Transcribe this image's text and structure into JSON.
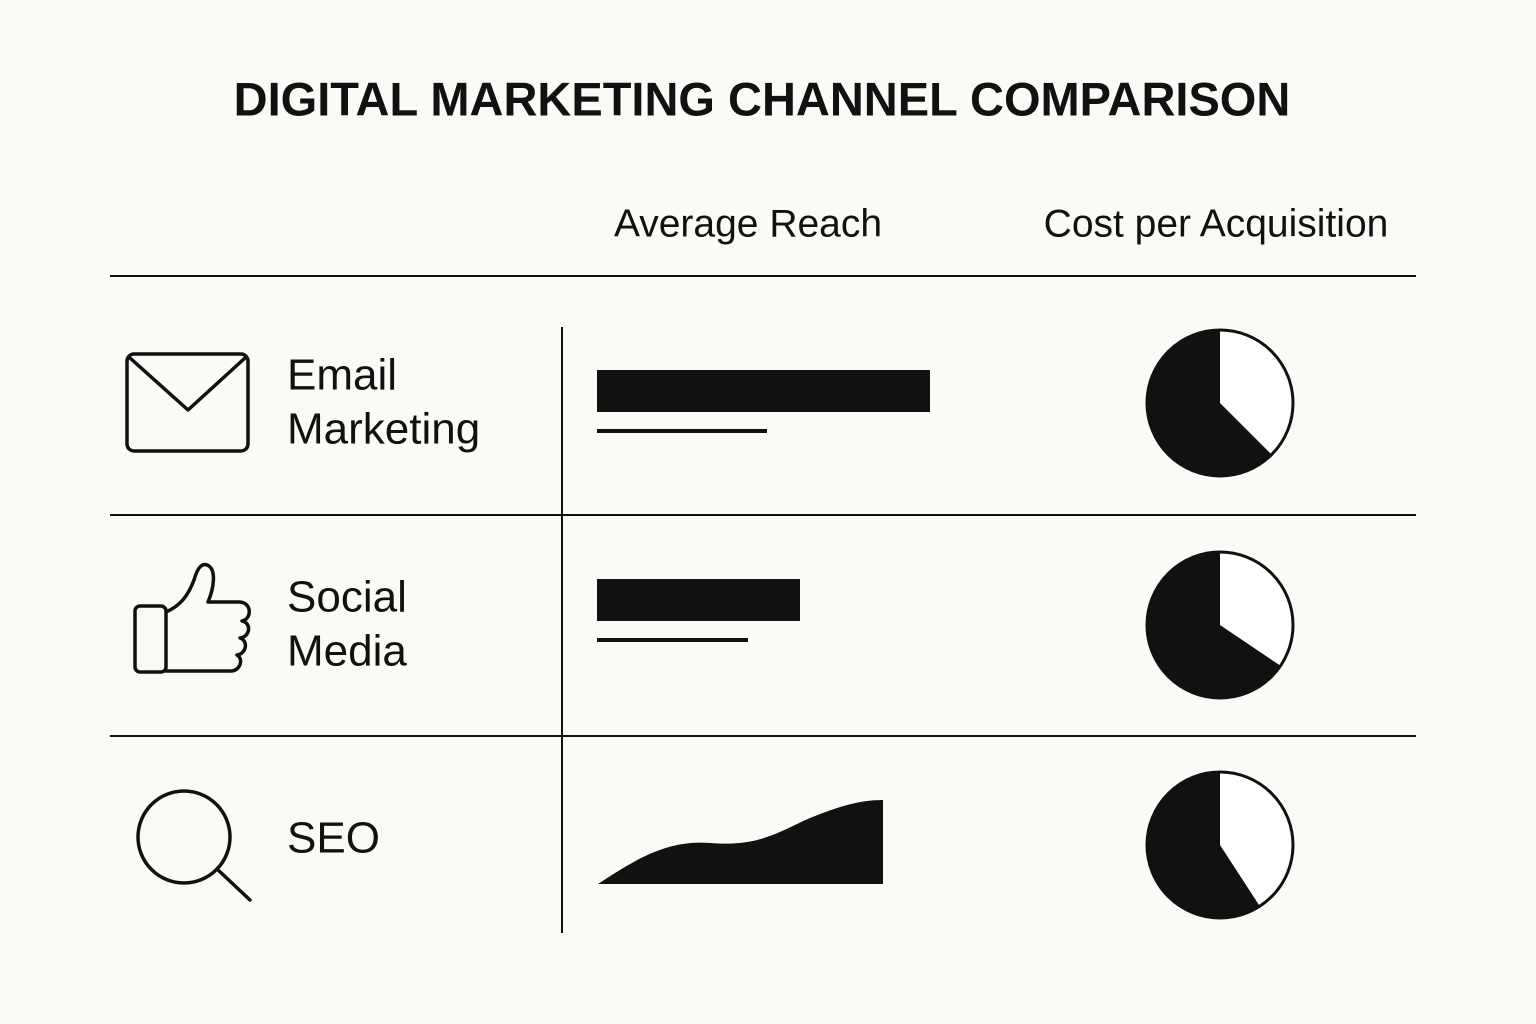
{
  "header": {
    "title": "DIGITAL MARKETING CHANNEL COMPARISON"
  },
  "table": {
    "columns": [
      "Average Reach",
      "Cost per Acquisition"
    ],
    "rows": [
      {
        "label": [
          "Email",
          "Marketing"
        ]
      },
      {
        "label": [
          "Social",
          "Media"
        ]
      },
      {
        "label": [
          "SEO"
        ]
      }
    ]
  }
}
